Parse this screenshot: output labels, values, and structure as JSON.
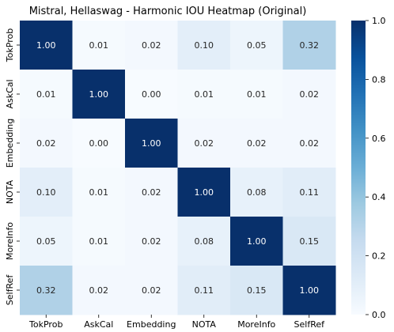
{
  "chart_data": {
    "type": "heatmap",
    "title": "Mistral, Hellaswag - Harmonic IOU Heatmap (Original)",
    "xlabel": "",
    "ylabel": "",
    "row_labels": [
      "TokProb",
      "AskCal",
      "Embedding",
      "NOTA",
      "MoreInfo",
      "SelfRef"
    ],
    "col_labels": [
      "TokProb",
      "AskCal",
      "Embedding",
      "NOTA",
      "MoreInfo",
      "SelfRef"
    ],
    "values": [
      [
        1.0,
        0.01,
        0.02,
        0.1,
        0.05,
        0.32
      ],
      [
        0.01,
        1.0,
        0.0,
        0.01,
        0.01,
        0.02
      ],
      [
        0.02,
        0.0,
        1.0,
        0.02,
        0.02,
        0.02
      ],
      [
        0.1,
        0.01,
        0.02,
        1.0,
        0.08,
        0.11
      ],
      [
        0.05,
        0.01,
        0.02,
        0.08,
        1.0,
        0.15
      ],
      [
        0.32,
        0.02,
        0.02,
        0.11,
        0.15,
        1.0
      ]
    ],
    "value_format": "0.00",
    "colormap": "Blues",
    "colorbar": {
      "range": [
        0.0,
        1.0
      ],
      "ticks": [
        0.0,
        0.2,
        0.4,
        0.6,
        0.8,
        1.0
      ],
      "tick_labels": [
        "0.0",
        "0.2",
        "0.4",
        "0.6",
        "0.8",
        "1.0"
      ],
      "placement": "right"
    },
    "grid": false
  }
}
